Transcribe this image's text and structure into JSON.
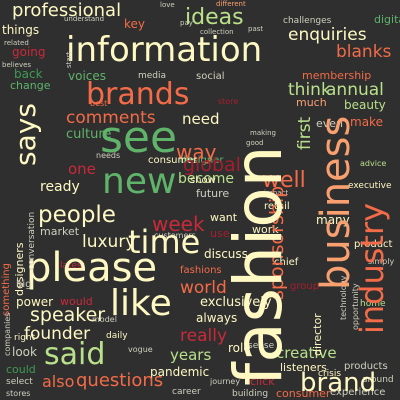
{
  "words": {
    "fashion": "fashion",
    "information": "information",
    "business": "business",
    "industry": "industry",
    "see": "see",
    "please": "please",
    "brands": "brands",
    "said": "said",
    "like": "like",
    "time": "time",
    "new": "new",
    "brand": "brand",
    "people": "people",
    "ideas": "ideas",
    "professional": "professional",
    "says": "says",
    "enquiries": "enquiries",
    "blanks": "blanks",
    "sponsorship": "sponsorship",
    "luxury": "luxury",
    "questions": "questions",
    "speaker": "speaker",
    "founder": "founder",
    "comments": "comments",
    "week": "week",
    "global": "global",
    "first": "first",
    "think": "think",
    "annual": "annual",
    "voices": "voices",
    "become": "become",
    "way": "way",
    "creative": "creative",
    "years": "years",
    "really": "really",
    "well": "well",
    "world": "world",
    "also": "also",
    "listeners": "listeners",
    "things": "things",
    "going": "going",
    "change": "change",
    "ready": "ready",
    "one": "one",
    "need": "need",
    "designer": "designer",
    "culture": "culture",
    "retail": "retail",
    "beauty": "beauty",
    "membership": "membership",
    "much": "much",
    "make": "make",
    "even": "even",
    "work": "work",
    "many": "many",
    "discuss": "discuss",
    "exclusively": "exclusively",
    "always": "always",
    "could": "could",
    "look": "look",
    "pandemic": "pandemic",
    "power": "power",
    "back": "back",
    "key": "key",
    "challenges": "challenges",
    "digital": "digital",
    "media": "media",
    "social": "social",
    "best": "best",
    "store": "store",
    "consumer": "consumer",
    "market": "market",
    "show": "show",
    "future": "future",
    "chief": "chief",
    "group": "group",
    "click": "click",
    "would": "would",
    "want": "want",
    "use": "use",
    "director": "director",
    "crisis": "crisis",
    "products": "products",
    "experience": "experience",
    "right": "right",
    "designers": "designers",
    "something": "something",
    "conversation": "conversation",
    "companies": "companies",
    "different": "different",
    "understand": "understand",
    "collection": "collection",
    "past": "past",
    "believes": "believes",
    "related": "related",
    "executive": "executive",
    "impact": "impact",
    "customers": "customers",
    "fashions": "fashions",
    "enjoy": "enjoy",
    "role": "role",
    "sense": "sense",
    "daily": "daily",
    "vogue": "vogue",
    "career": "career",
    "journey": "journey",
    "building": "building",
    "technology": "technology",
    "opportunity": "opportunity",
    "select": "select",
    "advice": "advice",
    "simply": "simply",
    "home": "home",
    "product": "product",
    "around": "around",
    "explore": "explore",
    "share": "share",
    "pay": "pay",
    "love": "love",
    "every": "every",
    "good": "good",
    "making": "making",
    "issue": "issue",
    "start": "start",
    "big": "big",
    "latest": "latest",
    "analysis": "analysis",
    "everything": "everything",
    "climate": "climate",
    "important": "important",
    "set": "set",
    "model": "model",
    "needs": "needs",
    "stores": "stores"
  }
}
